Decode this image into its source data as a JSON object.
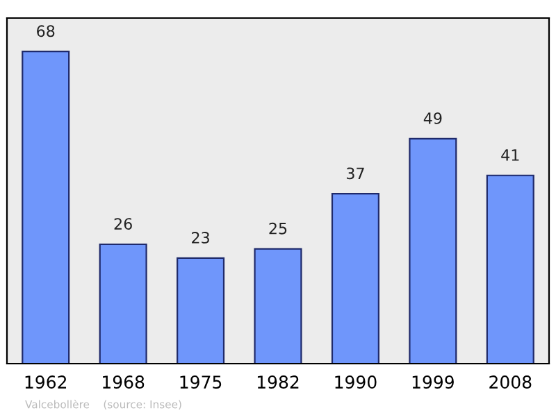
{
  "chart_data": {
    "type": "bar",
    "categories": [
      "1962",
      "1968",
      "1975",
      "1982",
      "1990",
      "1999",
      "2008"
    ],
    "values": [
      68,
      26,
      23,
      25,
      37,
      49,
      41
    ],
    "color": "#6f96fb",
    "data_labels": true,
    "grid": false,
    "legend": false,
    "annotations": [
      "Valcebollère    (source: Insee)"
    ]
  }
}
